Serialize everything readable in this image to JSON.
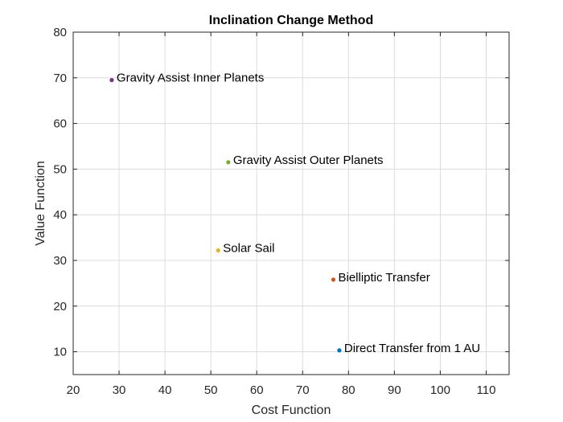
{
  "chart_data": {
    "type": "scatter",
    "title": "Inclination Change Method",
    "xlabel": "Cost Function",
    "ylabel": "Value Function",
    "xlim": [
      20,
      115
    ],
    "ylim": [
      5,
      80
    ],
    "xticks": [
      20,
      30,
      40,
      50,
      60,
      70,
      80,
      90,
      100,
      110
    ],
    "yticks": [
      10,
      20,
      30,
      40,
      50,
      60,
      70,
      80
    ],
    "grid": true,
    "legend": "none",
    "points": [
      {
        "label": "Direct Transfer from 1 AU",
        "x": 78,
        "y": 10.3,
        "color": "#0072BD"
      },
      {
        "label": "Bielliptic Transfer",
        "x": 76.7,
        "y": 25.8,
        "color": "#D95319"
      },
      {
        "label": "Solar Sail",
        "x": 51.6,
        "y": 32.2,
        "color": "#EDB120"
      },
      {
        "label": "Gravity Assist Outer Planets",
        "x": 53.8,
        "y": 51.5,
        "color": "#77AC30"
      },
      {
        "label": "Gravity Assist Inner Planets",
        "x": 28.4,
        "y": 69.5,
        "color": "#7E2F8E"
      }
    ]
  }
}
